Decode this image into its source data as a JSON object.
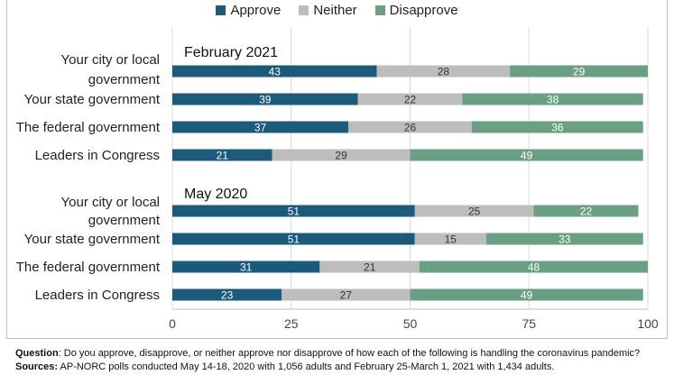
{
  "chart_data": {
    "type": "bar",
    "orientation": "horizontal",
    "stacked": true,
    "legend": {
      "placement": "top",
      "entries": [
        {
          "name": "Approve",
          "color": "#1b5a7a"
        },
        {
          "name": "Neither",
          "color": "#bdbdbd"
        },
        {
          "name": "Disapprove",
          "color": "#6a9f83"
        }
      ]
    },
    "xlim": [
      0,
      100
    ],
    "xticks": [
      "0",
      "25",
      "50",
      "75",
      "100"
    ],
    "grid": true,
    "groups": [
      {
        "title": "February 2021",
        "categories": [
          "Your city or local government",
          "Your state government",
          "The federal government",
          "Leaders in Congress"
        ],
        "series": [
          {
            "name": "Approve",
            "values": [
              43,
              39,
              37,
              21
            ]
          },
          {
            "name": "Neither",
            "values": [
              28,
              22,
              26,
              29
            ]
          },
          {
            "name": "Disapprove",
            "values": [
              29,
              38,
              36,
              49
            ]
          }
        ]
      },
      {
        "title": "May 2020",
        "categories": [
          "Your city or local government",
          "Your state government",
          "The federal government",
          "Leaders in Congress"
        ],
        "series": [
          {
            "name": "Approve",
            "values": [
              51,
              51,
              31,
              23
            ]
          },
          {
            "name": "Neither",
            "values": [
              25,
              15,
              21,
              27
            ]
          },
          {
            "name": "Disapprove",
            "values": [
              22,
              33,
              48,
              49
            ]
          }
        ]
      }
    ]
  },
  "footnote": {
    "question_label": "Question",
    "question_text": ": Do you approve, disapprove, or neither approve nor disapprove of how each of the following is handling the coronavirus pandemic?",
    "sources_label": "Sources:",
    "sources_text": "  AP-NORC polls conducted May 14-18, 2020 with 1,056 adults and February 25-March 1, 2021 with 1,434 adults."
  }
}
